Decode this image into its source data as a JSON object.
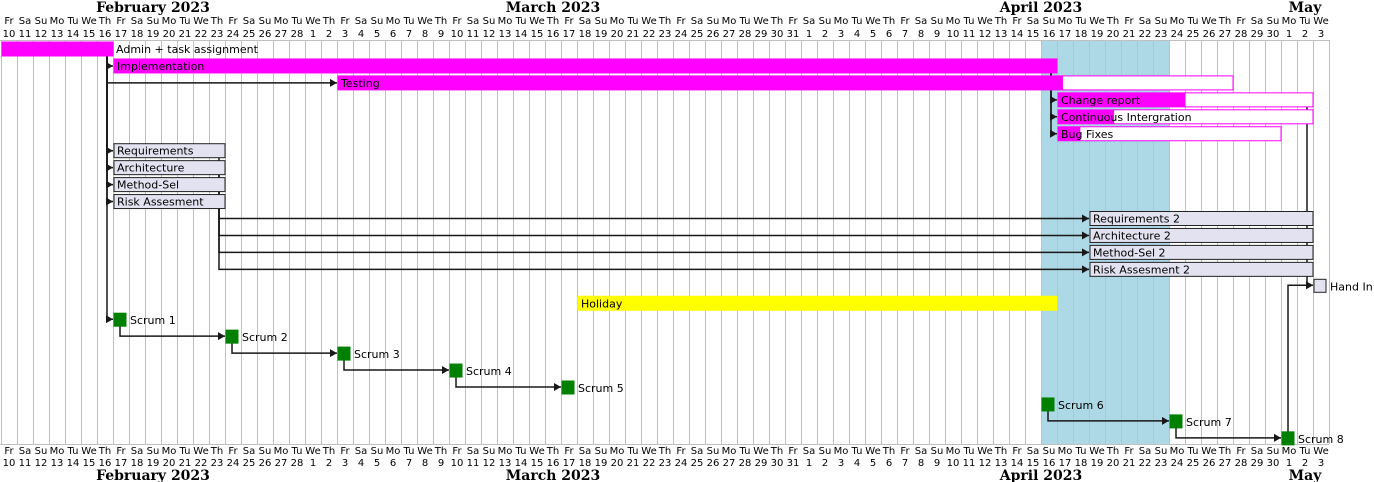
{
  "chart_data": {
    "type": "gantt",
    "start_date": "2023-02-10",
    "end_date": "2023-05-03",
    "months": [
      {
        "label": "February 2023",
        "start": "2023-02-10",
        "end": "2023-02-28"
      },
      {
        "label": "March 2023",
        "start": "2023-03-01",
        "end": "2023-03-31"
      },
      {
        "label": "April 2023",
        "start": "2023-04-01",
        "end": "2023-04-30"
      },
      {
        "label": "May",
        "start": "2023-05-01",
        "end": "2023-05-03"
      }
    ],
    "weekday_labels": [
      "Su",
      "Mo",
      "Tu",
      "We",
      "Th",
      "Fr",
      "Sa"
    ],
    "highlight_range": {
      "start": "2023-04-16",
      "end": "2023-04-23",
      "color": "#add8e6"
    },
    "tasks": [
      {
        "id": "admin",
        "label": "Admin + task assignment",
        "start": "2023-02-10",
        "end": "2023-02-16",
        "row": 0,
        "fill": "#ff00ff",
        "stroke": "#ff00ff",
        "complete": 1.0,
        "label_inside": false
      },
      {
        "id": "impl",
        "label": "Implementation",
        "start": "2023-02-17",
        "end": "2023-04-16",
        "row": 1,
        "fill": "#ff00ff",
        "stroke": "#ff00ff",
        "complete": 1.0,
        "label_inside": true
      },
      {
        "id": "test",
        "label": "Testing",
        "start": "2023-03-03",
        "end": "2023-04-27",
        "row": 2,
        "fill": "#ff00ff",
        "stroke": "#ff00ff",
        "complete": 0.81,
        "label_inside": true
      },
      {
        "id": "change",
        "label": "Change report",
        "start": "2023-04-17",
        "end": "2023-05-02",
        "row": 3,
        "fill": "#ff00ff",
        "stroke": "#ff00ff",
        "complete": 0.5,
        "label_inside": true
      },
      {
        "id": "ci",
        "label": "Continuous Intergration",
        "start": "2023-04-17",
        "end": "2023-05-02",
        "row": 4,
        "fill": "#ff00ff",
        "stroke": "#ff00ff",
        "complete": 0.22,
        "label_inside": true
      },
      {
        "id": "bug",
        "label": "Bug Fixes",
        "start": "2023-04-17",
        "end": "2023-04-30",
        "row": 5,
        "fill": "#ff00ff",
        "stroke": "#ff00ff",
        "complete": 0.1,
        "label_inside": true
      },
      {
        "id": "req",
        "label": "Requirements",
        "start": "2023-02-17",
        "end": "2023-02-23",
        "row": 6,
        "fill": "#e2e2f0",
        "stroke": "#222222",
        "complete": 0,
        "label_inside": true
      },
      {
        "id": "arch",
        "label": "Architecture",
        "start": "2023-02-17",
        "end": "2023-02-23",
        "row": 7,
        "fill": "#e2e2f0",
        "stroke": "#222222",
        "complete": 0,
        "label_inside": true
      },
      {
        "id": "meth",
        "label": "Method-Sel",
        "start": "2023-02-17",
        "end": "2023-02-23",
        "row": 8,
        "fill": "#e2e2f0",
        "stroke": "#222222",
        "complete": 0,
        "label_inside": true
      },
      {
        "id": "risk",
        "label": "Risk Assesment",
        "start": "2023-02-17",
        "end": "2023-02-23",
        "row": 9,
        "fill": "#e2e2f0",
        "stroke": "#222222",
        "complete": 0,
        "label_inside": true
      },
      {
        "id": "req2",
        "label": "Requirements 2",
        "start": "2023-04-19",
        "end": "2023-05-02",
        "row": 10,
        "fill": "#e2e2f0",
        "stroke": "#222222",
        "complete": 0,
        "label_inside": true
      },
      {
        "id": "arch2",
        "label": "Architecture 2",
        "start": "2023-04-19",
        "end": "2023-05-02",
        "row": 11,
        "fill": "#e2e2f0",
        "stroke": "#222222",
        "complete": 0,
        "label_inside": true
      },
      {
        "id": "meth2",
        "label": "Method-Sel 2",
        "start": "2023-04-19",
        "end": "2023-05-02",
        "row": 12,
        "fill": "#e2e2f0",
        "stroke": "#222222",
        "complete": 0,
        "label_inside": true
      },
      {
        "id": "risk2",
        "label": "Risk Assesment 2",
        "start": "2023-04-19",
        "end": "2023-05-02",
        "row": 13,
        "fill": "#e2e2f0",
        "stroke": "#222222",
        "complete": 0,
        "label_inside": true
      },
      {
        "id": "holiday",
        "label": "Holiday",
        "start": "2023-03-18",
        "end": "2023-04-16",
        "row": 15,
        "fill": "#ffff00",
        "stroke": "#ffff00",
        "complete": 1.0,
        "label_inside": true
      }
    ],
    "milestones": [
      {
        "id": "handin",
        "label": "Hand In",
        "date": "2023-05-03",
        "row": 14,
        "fill": "#e2e2f0",
        "stroke": "#222222"
      },
      {
        "id": "s1",
        "label": "Scrum 1",
        "date": "2023-02-17",
        "row": 16,
        "fill": "#008000",
        "stroke": "#008000"
      },
      {
        "id": "s2",
        "label": "Scrum 2",
        "date": "2023-02-24",
        "row": 17,
        "fill": "#008000",
        "stroke": "#008000"
      },
      {
        "id": "s3",
        "label": "Scrum 3",
        "date": "2023-03-03",
        "row": 18,
        "fill": "#008000",
        "stroke": "#008000"
      },
      {
        "id": "s4",
        "label": "Scrum 4",
        "date": "2023-03-10",
        "row": 19,
        "fill": "#008000",
        "stroke": "#008000"
      },
      {
        "id": "s5",
        "label": "Scrum 5",
        "date": "2023-03-17",
        "row": 20,
        "fill": "#008000",
        "stroke": "#008000"
      },
      {
        "id": "s6",
        "label": "Scrum 6",
        "date": "2023-04-16",
        "row": 21,
        "fill": "#008000",
        "stroke": "#008000"
      },
      {
        "id": "s7",
        "label": "Scrum 7",
        "date": "2023-04-24",
        "row": 22,
        "fill": "#008000",
        "stroke": "#008000"
      },
      {
        "id": "s8",
        "label": "Scrum 8",
        "date": "2023-05-01",
        "row": 23,
        "fill": "#008000",
        "stroke": "#008000"
      }
    ],
    "dependencies": [
      {
        "from": "admin",
        "to": "impl"
      },
      {
        "from": "admin",
        "to": "test"
      },
      {
        "from": "admin",
        "to": "req"
      },
      {
        "from": "admin",
        "to": "arch"
      },
      {
        "from": "admin",
        "to": "meth"
      },
      {
        "from": "admin",
        "to": "risk"
      },
      {
        "from": "admin",
        "to": "s1"
      },
      {
        "from": "impl",
        "to": "change"
      },
      {
        "from": "impl",
        "to": "ci"
      },
      {
        "from": "impl",
        "to": "bug"
      },
      {
        "from": "req",
        "to": "req2"
      },
      {
        "from": "arch",
        "to": "arch2"
      },
      {
        "from": "meth",
        "to": "meth2"
      },
      {
        "from": "risk",
        "to": "risk2"
      },
      {
        "from": "change",
        "to": "handin"
      },
      {
        "from": "s8",
        "to": "handin"
      },
      {
        "from": "s1",
        "to": "s2"
      },
      {
        "from": "s2",
        "to": "s3"
      },
      {
        "from": "s3",
        "to": "s4"
      },
      {
        "from": "s4",
        "to": "s5"
      },
      {
        "from": "s6",
        "to": "s7"
      },
      {
        "from": "s7",
        "to": "s8"
      }
    ]
  }
}
